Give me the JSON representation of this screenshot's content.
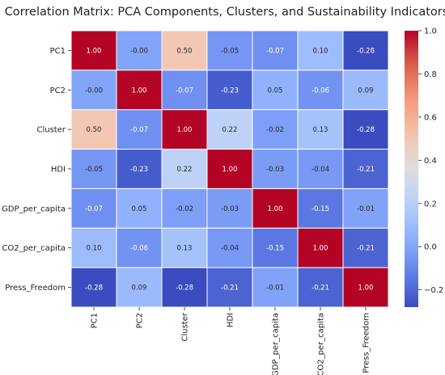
{
  "chart_data": {
    "type": "heatmap",
    "title": "Correlation Matrix: PCA Components, Clusters, and Sustainability Indicators",
    "xlabel": "",
    "ylabel": "",
    "labels": [
      "PC1",
      "PC2",
      "Cluster",
      "HDI",
      "GDP_per_capita",
      "CO2_per_capita",
      "Press_Freedom"
    ],
    "matrix": [
      [
        1.0,
        -0.0,
        0.5,
        -0.05,
        -0.07,
        0.1,
        -0.28
      ],
      [
        -0.0,
        1.0,
        -0.07,
        -0.23,
        0.05,
        -0.06,
        0.09
      ],
      [
        0.5,
        -0.07,
        1.0,
        0.22,
        -0.02,
        0.13,
        -0.28
      ],
      [
        -0.05,
        -0.23,
        0.22,
        1.0,
        -0.03,
        -0.04,
        -0.21
      ],
      [
        -0.07,
        0.05,
        -0.02,
        -0.03,
        1.0,
        -0.15,
        -0.01
      ],
      [
        0.1,
        -0.06,
        0.13,
        -0.04,
        -0.15,
        1.0,
        -0.21
      ],
      [
        -0.28,
        0.09,
        -0.28,
        -0.21,
        -0.01,
        -0.21,
        1.0
      ]
    ],
    "value_format": "2 decimals",
    "colormap": "coolwarm",
    "vmin": -0.28,
    "vmax": 1.0,
    "colorbar": {
      "ticks": [
        -0.2,
        0.0,
        0.2,
        0.4,
        0.6,
        0.8,
        1.0
      ],
      "tick_labels": [
        "−0.2",
        "0.0",
        "0.2",
        "0.4",
        "0.6",
        "0.8",
        "1.0"
      ],
      "placement": "right"
    },
    "grid_lines": true,
    "grid_color": "#ffffff"
  }
}
